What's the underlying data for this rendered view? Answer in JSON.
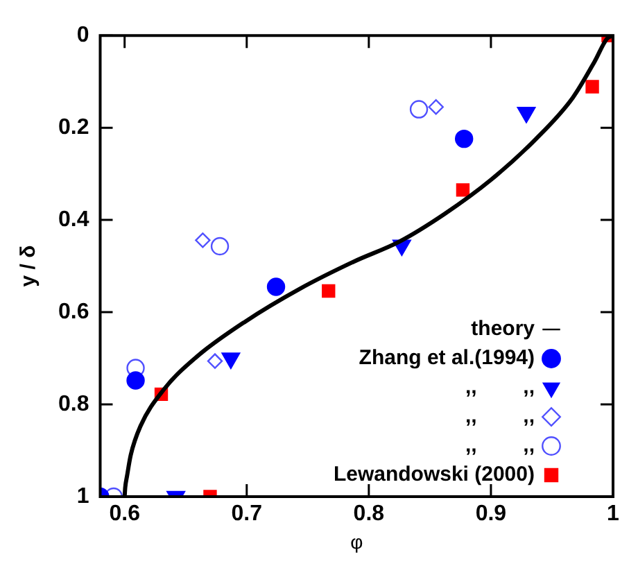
{
  "chart_data": {
    "type": "scatter",
    "xlabel": "φ",
    "ylabel": "y / δ",
    "xlim": [
      0.58,
      1
    ],
    "ylim": [
      1,
      0
    ],
    "xticks": [
      0.6,
      0.7,
      0.8,
      0.9,
      1
    ],
    "yticks": [
      0,
      0.2,
      0.4,
      0.6,
      0.8,
      1
    ],
    "grid": false,
    "legend": "bottom right",
    "series": [
      {
        "name": "theory",
        "type": "line",
        "color": "#000000",
        "marker": "none",
        "line_style": "solid",
        "x": [
          0.6,
          0.6005,
          0.602,
          0.605,
          0.613,
          0.632,
          0.658,
          0.699,
          0.743,
          0.788,
          0.825,
          0.862,
          0.9,
          0.937,
          0.967,
          0.985,
          0.995,
          1
        ],
        "values": [
          1,
          0.98,
          0.955,
          0.91,
          0.847,
          0.768,
          0.699,
          0.62,
          0.55,
          0.49,
          0.447,
          0.387,
          0.313,
          0.224,
          0.135,
          0.056,
          0.007,
          0
        ]
      },
      {
        "name": "Zhang et al.(1994)",
        "color": "#0000ff",
        "marker": "circle",
        "x": [
          0.58,
          0.609,
          0.724,
          0.878
        ],
        "values": [
          1,
          0.748,
          0.545,
          0.224
        ]
      },
      {
        "name": ",,        ,,",
        "color": "#0000ff",
        "marker": "triangle-down",
        "x": [
          0.642,
          0.687,
          0.827,
          0.929
        ],
        "values": [
          1,
          0.7,
          0.455,
          0.167
        ]
      },
      {
        "name": ",,        ,,",
        "color": "#5050ff",
        "marker": "diamond",
        "x": [
          0.664,
          0.674,
          0.855
        ],
        "values": [
          0.444,
          0.706,
          0.155
        ]
      },
      {
        "name": ",,        ,,",
        "color": "#5050ff",
        "marker": "circle",
        "x": [
          0.591,
          0.609,
          0.678,
          0.841
        ],
        "values": [
          1,
          0.721,
          0.457,
          0.16
        ]
      },
      {
        "name": "Lewandowski (2000)",
        "color": "#ff0000",
        "marker": "square",
        "x": [
          0.63,
          0.67,
          0.767,
          0.877,
          0.983,
          0.996
        ],
        "values": [
          0.778,
          1,
          0.554,
          0.335,
          0.111,
          0
        ]
      }
    ]
  }
}
